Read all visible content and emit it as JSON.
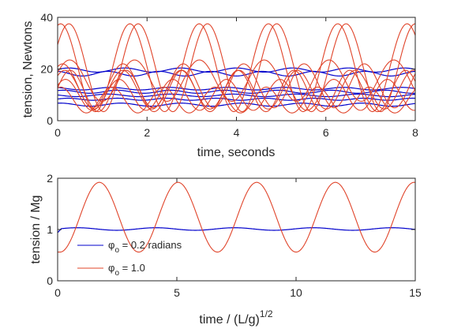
{
  "chart_data": [
    {
      "type": "line",
      "xlabel": "time, seconds",
      "ylabel": "tension, Newtons",
      "xlim": [
        0,
        8
      ],
      "ylim": [
        0,
        40
      ],
      "xticks": [
        "0",
        "2",
        "4",
        "6",
        "8"
      ],
      "yticks": [
        "0",
        "20",
        "40"
      ],
      "grid": false,
      "series": [
        {
          "color": "#0000cc",
          "kind": "flat",
          "mean": 19.6,
          "amplitude": 0.8,
          "period_s": 1.25,
          "phase": 0.3
        },
        {
          "color": "#0000cc",
          "kind": "flat",
          "mean": 18.2,
          "amplitude": 0.9,
          "period_s": 1.15,
          "phase": 1.7
        },
        {
          "color": "#0000cc",
          "kind": "flat",
          "mean": 12.4,
          "amplitude": 0.5,
          "period_s": 1.3,
          "phase": 2.1
        },
        {
          "color": "#0000cc",
          "kind": "flat",
          "mean": 11.2,
          "amplitude": 0.6,
          "period_s": 1.2,
          "phase": 0.9
        },
        {
          "color": "#0000cc",
          "kind": "flat",
          "mean": 9.8,
          "amplitude": 0.5,
          "period_s": 1.4,
          "phase": 2.8
        },
        {
          "color": "#0000cc",
          "kind": "flat",
          "mean": 8.3,
          "amplitude": 0.4,
          "period_s": 1.1,
          "phase": 0.2
        },
        {
          "color": "#0000cc",
          "kind": "flat",
          "mean": 6.2,
          "amplitude": 0.6,
          "period_s": 1.35,
          "phase": 1.3
        },
        {
          "color": "#e0442a",
          "kind": "wave",
          "mean": 20.5,
          "amplitude": 17.0,
          "period_s": 1.55,
          "phase": 0.55
        },
        {
          "color": "#e0442a",
          "kind": "wave",
          "mean": 20.5,
          "amplitude": 17.0,
          "period_s": 1.55,
          "phase": 1.3
        },
        {
          "color": "#e0442a",
          "kind": "wave",
          "mean": 15.5,
          "amplitude": 8.0,
          "period_s": 1.45,
          "phase": 0.4
        },
        {
          "color": "#e0442a",
          "kind": "wave",
          "mean": 13.5,
          "amplitude": 8.5,
          "period_s": 1.35,
          "phase": 1.05
        },
        {
          "color": "#e0442a",
          "kind": "wave",
          "mean": 12.0,
          "amplitude": 7.5,
          "period_s": 1.3,
          "phase": 0.8
        },
        {
          "color": "#e0442a",
          "kind": "wave",
          "mean": 11.5,
          "amplitude": 8.0,
          "period_s": 1.25,
          "phase": 0.15
        },
        {
          "color": "#e0442a",
          "kind": "wave",
          "mean": 10.0,
          "amplitude": 6.0,
          "period_s": 1.2,
          "phase": 0.65
        },
        {
          "color": "#e0442a",
          "kind": "wave",
          "mean": 8.0,
          "amplitude": 5.0,
          "period_s": 1.15,
          "phase": 1.2
        }
      ]
    },
    {
      "type": "line",
      "xlabel": "time / (L/g)",
      "xlabel_sup": "1/2",
      "ylabel": "tension / Mg",
      "xlim": [
        0,
        15
      ],
      "ylim": [
        0,
        2
      ],
      "xticks": [
        "0",
        "5",
        "10",
        "15"
      ],
      "yticks": [
        "0",
        "1",
        "2"
      ],
      "grid": false,
      "legend": "lower-left",
      "series": [
        {
          "name": "φ",
          "name_sub": "o",
          "name_rest": " = 0.2 radians",
          "color": "#0000cc",
          "kind": "flat",
          "mean": 1.01,
          "amplitude": 0.025,
          "period": 3.3,
          "start": 0.94
        },
        {
          "name": "φ",
          "name_sub": "o",
          "name_rest": " = 1.0",
          "color": "#e0442a",
          "kind": "wave",
          "mean": 1.24,
          "amplitude": 0.68,
          "period": 3.3,
          "start": 0.56
        }
      ]
    }
  ]
}
